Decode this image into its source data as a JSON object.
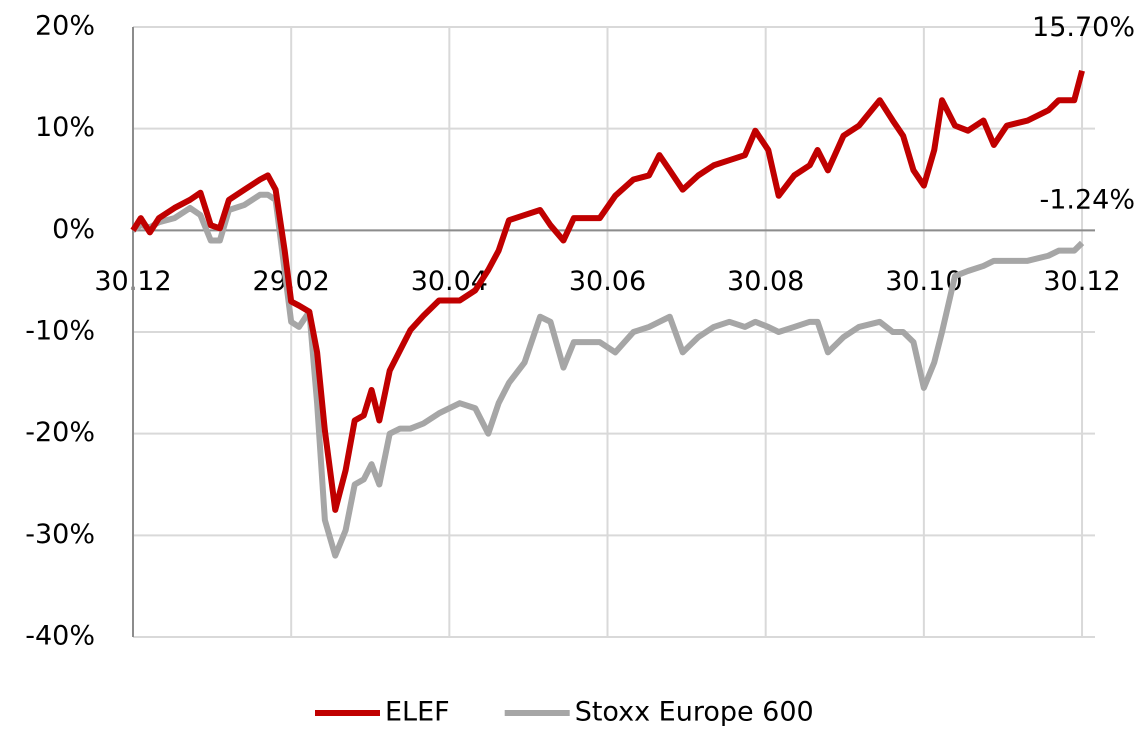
{
  "chart_data": {
    "type": "line",
    "x": [
      0,
      3,
      6.5,
      10,
      16,
      22,
      26,
      30,
      33.5,
      37,
      43,
      49,
      52,
      55,
      58.5,
      61,
      64,
      68,
      71,
      74,
      78,
      82,
      85.5,
      89,
      92,
      95,
      99,
      103,
      107,
      112,
      118,
      126,
      132,
      137,
      141,
      145,
      151,
      157,
      161,
      166,
      170,
      180,
      186,
      193,
      199,
      203,
      207,
      212,
      218,
      224,
      230,
      236,
      240,
      245,
      249,
      255,
      261,
      264,
      268,
      274,
      280,
      288,
      293,
      297,
      301,
      305,
      309,
      312,
      317,
      322,
      328,
      332,
      337,
      345,
      353,
      357,
      363,
      366
    ],
    "series": [
      {
        "name": "ELEF",
        "color": "#c00000",
        "values": [
          0,
          1.2,
          -0.2,
          1.2,
          2.2,
          3,
          3.7,
          0.5,
          0.2,
          3,
          4,
          5,
          5.4,
          4,
          -2,
          -7,
          -7.4,
          -8,
          -12,
          -19.7,
          -27.5,
          -23.6,
          -18.7,
          -18.2,
          -15.7,
          -18.7,
          -13.8,
          -11.8,
          -9.8,
          -8.4,
          -6.9,
          -6.9,
          -5.9,
          -3.9,
          -2,
          1,
          1.5,
          2,
          0.5,
          -1,
          1.2,
          1.2,
          3.4,
          5,
          5.4,
          7.4,
          5.9,
          4,
          5.4,
          6.4,
          6.9,
          7.4,
          9.8,
          7.9,
          3.4,
          5.4,
          6.4,
          7.9,
          5.9,
          9.3,
          10.3,
          12.8,
          10.8,
          9.3,
          5.9,
          4.4,
          7.9,
          12.8,
          10.3,
          9.8,
          10.8,
          8.4,
          10.3,
          10.8,
          11.8,
          12.8,
          12.8,
          15.7
        ]
      },
      {
        "name": "Stoxx Europe 600",
        "color": "#a6a6a6",
        "values": [
          0,
          0.5,
          0.3,
          0.8,
          1.2,
          2.2,
          1.5,
          -1,
          -1,
          2,
          2.5,
          3.5,
          3.5,
          3,
          -4,
          -9,
          -9.5,
          -8,
          -17,
          -28.5,
          -32,
          -29.5,
          -25,
          -24.5,
          -23,
          -25,
          -20,
          -19.5,
          -19.5,
          -19,
          -18,
          -17,
          -17.5,
          -20,
          -17,
          -15,
          -13,
          -8.5,
          -9,
          -13.5,
          -11,
          -11,
          -12,
          -10,
          -9.5,
          -9,
          -8.5,
          -12,
          -10.5,
          -9.5,
          -9,
          -9.5,
          -9,
          -9.5,
          -10,
          -9.5,
          -9,
          -9,
          -12,
          -10.5,
          -9.5,
          -9,
          -10,
          -10,
          -11,
          -15.5,
          -13,
          -10,
          -4.5,
          -4,
          -3.5,
          -3,
          -3,
          -3,
          -2.5,
          -2,
          -2,
          -1.24
        ]
      }
    ],
    "annotations": [
      "15.70%",
      "-1.24%"
    ],
    "xlim": [
      0,
      371
    ],
    "xticks": [
      {
        "value": 0,
        "label": "30.12"
      },
      {
        "value": 61,
        "label": "29.02"
      },
      {
        "value": 122,
        "label": "30.04"
      },
      {
        "value": 183,
        "label": "30.06"
      },
      {
        "value": 244,
        "label": "30.08"
      },
      {
        "value": 305,
        "label": "30.10"
      },
      {
        "value": 366,
        "label": "30.12"
      }
    ],
    "ylim": [
      -40,
      20
    ],
    "yticks": [
      {
        "value": -40,
        "label": "-40%"
      },
      {
        "value": -30,
        "label": "-30%"
      },
      {
        "value": -20,
        "label": "-20%"
      },
      {
        "value": -10,
        "label": "-10%"
      },
      {
        "value": 0,
        "label": "0%"
      },
      {
        "value": 10,
        "label": "10%"
      },
      {
        "value": 20,
        "label": "20%"
      }
    ],
    "grid": true,
    "legend": "bottom"
  }
}
